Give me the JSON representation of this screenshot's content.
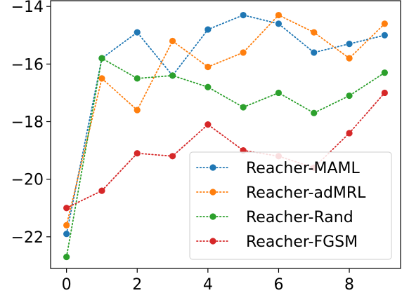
{
  "chart_data": {
    "type": "line",
    "x": [
      0,
      1,
      2,
      3,
      4,
      5,
      6,
      7,
      8,
      9
    ],
    "xlim": [
      -0.45,
      9.45
    ],
    "ylim": [
      -23.1,
      -13.8
    ],
    "xticks": [
      0,
      2,
      4,
      6,
      8
    ],
    "yticks": [
      -22,
      -20,
      -18,
      -16,
      -14
    ],
    "xtick_labels": [
      "0",
      "2",
      "4",
      "6",
      "8"
    ],
    "ytick_labels": [
      "−22",
      "−20",
      "−18",
      "−16",
      "−14"
    ],
    "grid": false,
    "line_style": "dotted",
    "legend_position": "lower-right",
    "series": [
      {
        "name": "Reacher-MAML",
        "color": "#1f77b4",
        "values": [
          -21.9,
          -15.8,
          -14.9,
          -16.4,
          -14.8,
          -14.3,
          -14.6,
          -15.6,
          -15.3,
          -15.0
        ]
      },
      {
        "name": "Reacher-adMRL",
        "color": "#ff7f0e",
        "values": [
          -21.6,
          -16.5,
          -17.6,
          -15.2,
          -16.1,
          -15.6,
          -14.3,
          -14.9,
          -15.8,
          -14.6
        ]
      },
      {
        "name": "Reacher-Rand",
        "color": "#2ca02c",
        "values": [
          -22.7,
          -15.8,
          -16.5,
          -16.4,
          -16.8,
          -17.5,
          -17.0,
          -17.7,
          -17.1,
          -16.3
        ]
      },
      {
        "name": "Reacher-FGSM",
        "color": "#d62728",
        "values": [
          -21.0,
          -20.4,
          -19.1,
          -19.2,
          -18.1,
          -19.0,
          -19.2,
          -19.6,
          -18.4,
          -17.0
        ]
      }
    ]
  }
}
